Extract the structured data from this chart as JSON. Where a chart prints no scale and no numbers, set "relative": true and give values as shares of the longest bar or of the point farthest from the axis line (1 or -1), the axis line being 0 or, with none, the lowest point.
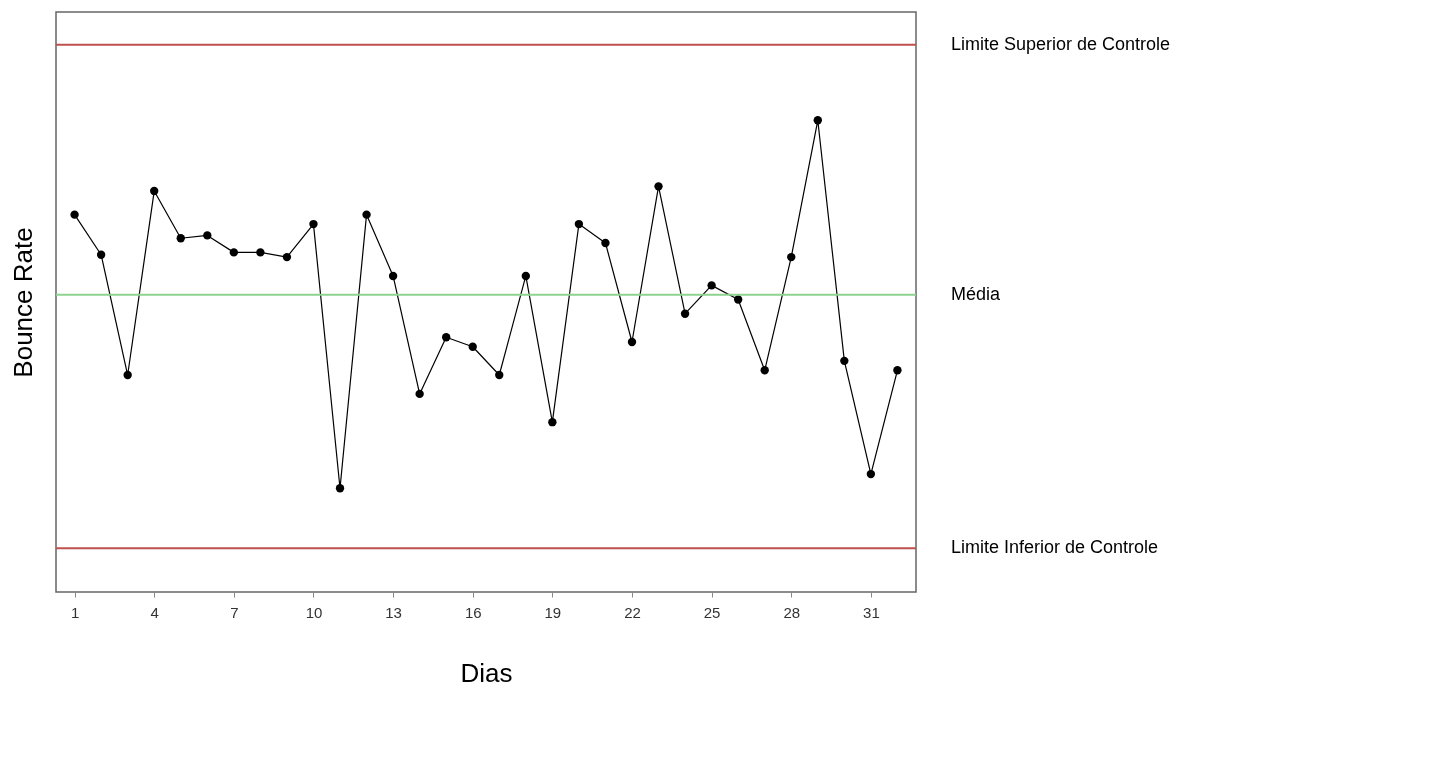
{
  "chart_data": {
    "type": "line",
    "xlabel": "Dias",
    "ylabel": "Bounce Rate",
    "relative": true,
    "marker": "circle",
    "line_style": "solid",
    "grid": false,
    "x": [
      1,
      2,
      3,
      4,
      5,
      6,
      7,
      8,
      9,
      10,
      11,
      12,
      13,
      14,
      15,
      16,
      17,
      18,
      19,
      20,
      21,
      22,
      23,
      24,
      25,
      26,
      27,
      28,
      29,
      30,
      31,
      32
    ],
    "xlim": [
      0.3,
      32.7
    ],
    "xticks": [
      1,
      4,
      7,
      10,
      13,
      16,
      19,
      22,
      25,
      28,
      31
    ],
    "series": [
      {
        "color": "#000000",
        "values": [
          0.8,
          0.715,
          0.46,
          0.85,
          0.75,
          0.756,
          0.72,
          0.72,
          0.71,
          0.78,
          0.22,
          0.8,
          0.67,
          0.42,
          0.54,
          0.52,
          0.46,
          0.67,
          0.36,
          0.78,
          0.74,
          0.53,
          0.86,
          0.59,
          0.65,
          0.62,
          0.47,
          0.71,
          1.0,
          0.49,
          0.25,
          0.47
        ]
      }
    ],
    "ref_lines": [
      {
        "axis": "y",
        "value": 1.16,
        "label": "Limite Superior de Controle",
        "color": "#c0504d"
      },
      {
        "axis": "y",
        "value": 0.63,
        "label": "Média",
        "color": "#8fd18f"
      },
      {
        "axis": "y",
        "value": 0.093,
        "label": "Limite Inferior de Controle",
        "color": "#c0504d"
      }
    ]
  }
}
